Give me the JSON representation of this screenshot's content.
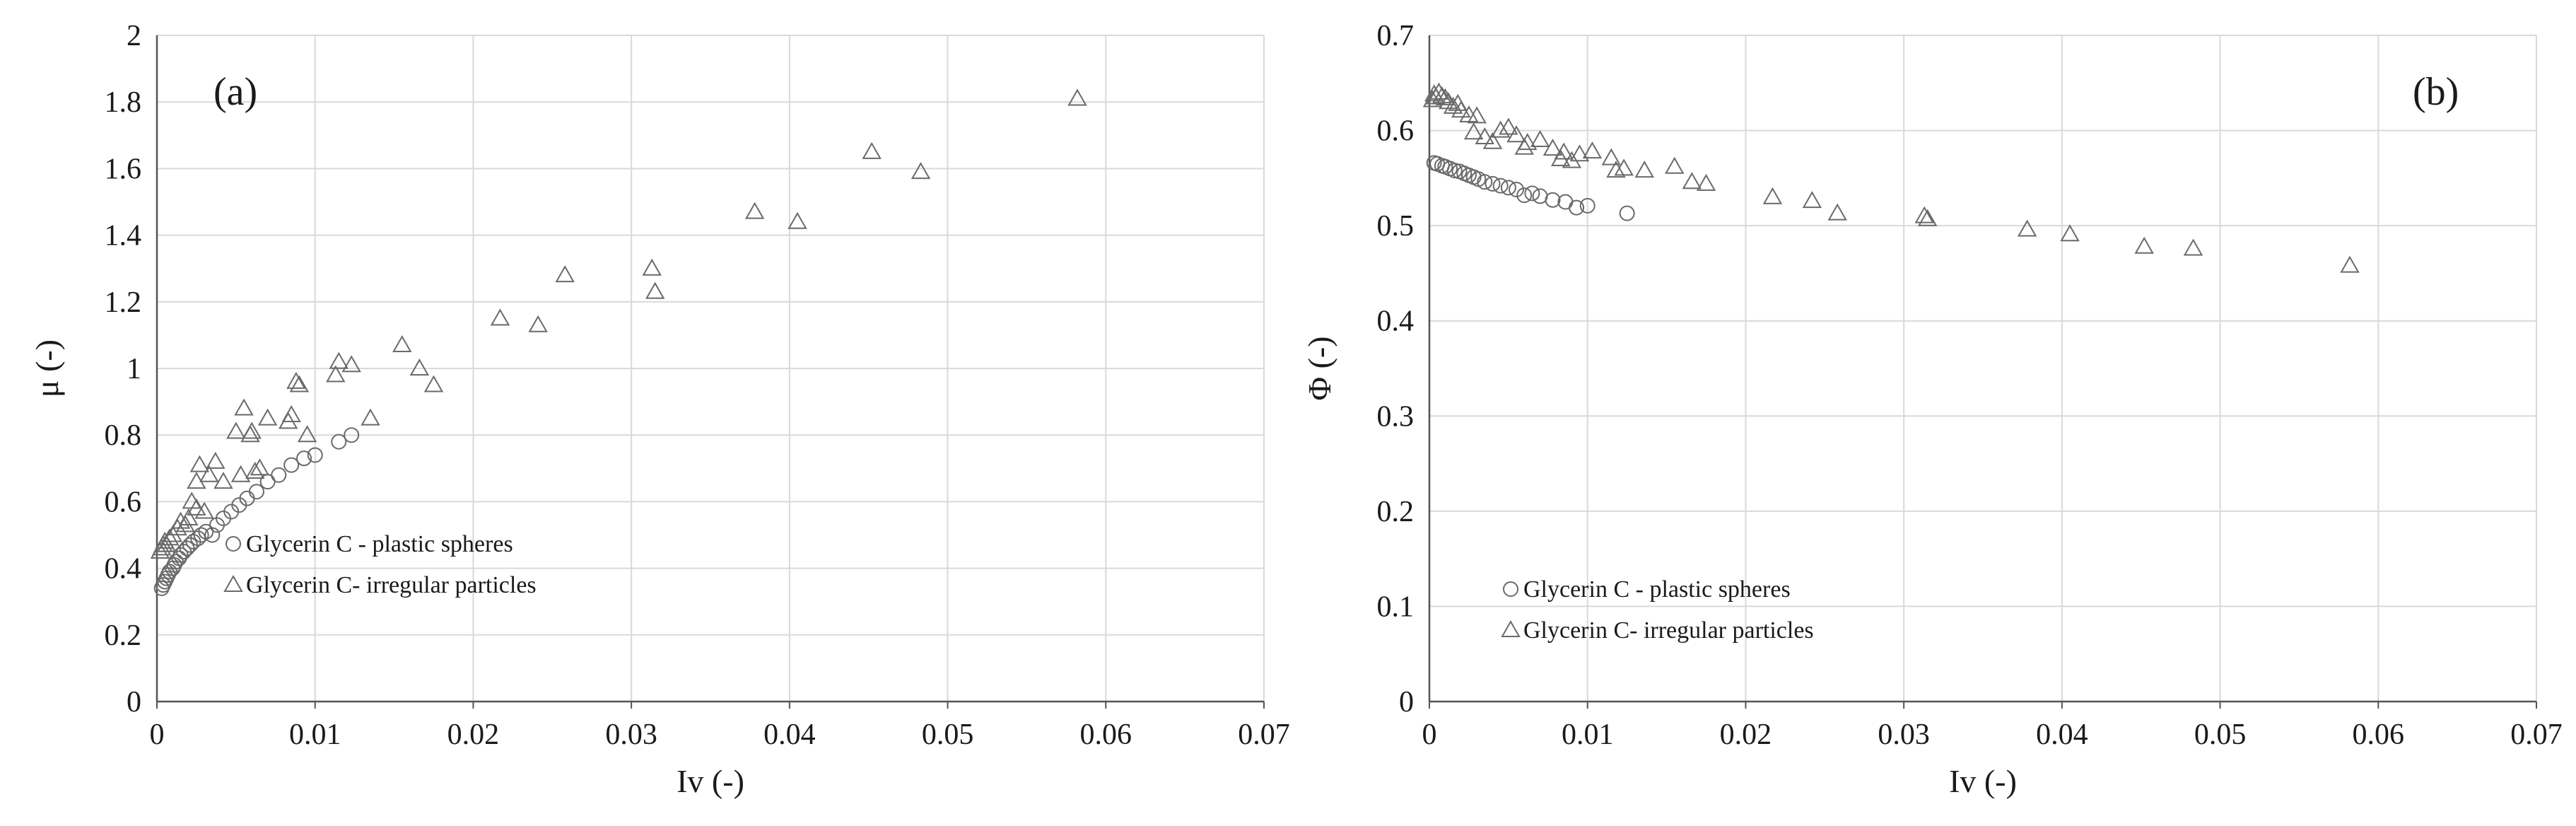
{
  "colors": {
    "marker": "#6a6a6a",
    "grid": "#d9d9d9",
    "axis": "#555555",
    "text": "#1a1a1a"
  },
  "chart_data": [
    {
      "type": "scatter",
      "panel_label": "(a)",
      "xlabel": "Iv (-)",
      "ylabel": "μ (-)",
      "xlim": [
        0,
        0.07
      ],
      "ylim": [
        0,
        2
      ],
      "x_ticks": [
        "0",
        "0.01",
        "0.02",
        "0.03",
        "0.04",
        "0.05",
        "0.06",
        "0.07"
      ],
      "y_ticks": [
        "0",
        "0.2",
        "0.4",
        "0.6",
        "0.8",
        "1",
        "1.2",
        "1.4",
        "1.6",
        "1.8",
        "2"
      ],
      "grid": true,
      "legend_position": "bottom-left",
      "series": [
        {
          "name": "Glycerin C - plastic spheres",
          "marker": "circle",
          "points": [
            [
              0.0003,
              0.34
            ],
            [
              0.0004,
              0.35
            ],
            [
              0.0005,
              0.36
            ],
            [
              0.0006,
              0.37
            ],
            [
              0.0007,
              0.38
            ],
            [
              0.0008,
              0.39
            ],
            [
              0.001,
              0.4
            ],
            [
              0.0011,
              0.41
            ],
            [
              0.0012,
              0.42
            ],
            [
              0.0014,
              0.43
            ],
            [
              0.0015,
              0.44
            ],
            [
              0.0017,
              0.45
            ],
            [
              0.0019,
              0.46
            ],
            [
              0.0021,
              0.47
            ],
            [
              0.0023,
              0.48
            ],
            [
              0.0026,
              0.49
            ],
            [
              0.0028,
              0.5
            ],
            [
              0.0031,
              0.51
            ],
            [
              0.0035,
              0.5
            ],
            [
              0.0038,
              0.53
            ],
            [
              0.0042,
              0.55
            ],
            [
              0.0047,
              0.57
            ],
            [
              0.0052,
              0.59
            ],
            [
              0.0057,
              0.61
            ],
            [
              0.0063,
              0.63
            ],
            [
              0.007,
              0.66
            ],
            [
              0.0077,
              0.68
            ],
            [
              0.0085,
              0.71
            ],
            [
              0.0093,
              0.73
            ],
            [
              0.01,
              0.74
            ],
            [
              0.0115,
              0.78
            ],
            [
              0.0123,
              0.8
            ]
          ]
        },
        {
          "name": "Glycerin C- irregular particles",
          "marker": "triangle",
          "points": [
            [
              0.0002,
              0.45
            ],
            [
              0.0003,
              0.46
            ],
            [
              0.0004,
              0.47
            ],
            [
              0.0005,
              0.48
            ],
            [
              0.0006,
              0.47
            ],
            [
              0.0008,
              0.49
            ],
            [
              0.001,
              0.5
            ],
            [
              0.0013,
              0.52
            ],
            [
              0.0015,
              0.54
            ],
            [
              0.0018,
              0.53
            ],
            [
              0.002,
              0.55
            ],
            [
              0.0022,
              0.6
            ],
            [
              0.0025,
              0.58
            ],
            [
              0.0025,
              0.66
            ],
            [
              0.0027,
              0.71
            ],
            [
              0.003,
              0.57
            ],
            [
              0.0033,
              0.68
            ],
            [
              0.0037,
              0.72
            ],
            [
              0.0042,
              0.66
            ],
            [
              0.005,
              0.81
            ],
            [
              0.0053,
              0.68
            ],
            [
              0.0055,
              0.88
            ],
            [
              0.0059,
              0.8
            ],
            [
              0.006,
              0.81
            ],
            [
              0.0062,
              0.69
            ],
            [
              0.0065,
              0.7
            ],
            [
              0.007,
              0.85
            ],
            [
              0.0083,
              0.84
            ],
            [
              0.0085,
              0.86
            ],
            [
              0.0088,
              0.96
            ],
            [
              0.009,
              0.95
            ],
            [
              0.0095,
              0.8
            ],
            [
              0.0113,
              0.98
            ],
            [
              0.0115,
              1.02
            ],
            [
              0.0123,
              1.01
            ],
            [
              0.0135,
              0.85
            ],
            [
              0.0155,
              1.07
            ],
            [
              0.0166,
              1.0
            ],
            [
              0.0175,
              0.95
            ],
            [
              0.0217,
              1.15
            ],
            [
              0.0241,
              1.13
            ],
            [
              0.0258,
              1.28
            ],
            [
              0.0313,
              1.3
            ],
            [
              0.0315,
              1.23
            ],
            [
              0.0378,
              1.47
            ],
            [
              0.0405,
              1.44
            ],
            [
              0.0452,
              1.65
            ],
            [
              0.0483,
              1.59
            ],
            [
              0.0582,
              1.81
            ]
          ]
        }
      ]
    },
    {
      "type": "scatter",
      "panel_label": "(b)",
      "xlabel": "Iv (-)",
      "ylabel": "Φ (-)",
      "xlim": [
        0,
        0.07
      ],
      "ylim": [
        0,
        0.7
      ],
      "x_ticks": [
        "0",
        "0.01",
        "0.02",
        "0.03",
        "0.04",
        "0.05",
        "0.06",
        "0.07"
      ],
      "y_ticks": [
        "0",
        "0.1",
        "0.2",
        "0.3",
        "0.4",
        "0.5",
        "0.6",
        "0.7"
      ],
      "grid": true,
      "legend_position": "bottom-left",
      "series": [
        {
          "name": "Glycerin C - plastic spheres",
          "marker": "circle",
          "points": [
            [
              0.0003,
              0.566
            ],
            [
              0.0005,
              0.565
            ],
            [
              0.0008,
              0.563
            ],
            [
              0.001,
              0.562
            ],
            [
              0.0013,
              0.56
            ],
            [
              0.0016,
              0.558
            ],
            [
              0.0019,
              0.557
            ],
            [
              0.0022,
              0.555
            ],
            [
              0.0025,
              0.553
            ],
            [
              0.0028,
              0.551
            ],
            [
              0.0031,
              0.549
            ],
            [
              0.0035,
              0.546
            ],
            [
              0.004,
              0.544
            ],
            [
              0.0045,
              0.542
            ],
            [
              0.005,
              0.54
            ],
            [
              0.0055,
              0.538
            ],
            [
              0.006,
              0.532
            ],
            [
              0.0065,
              0.534
            ],
            [
              0.007,
              0.531
            ],
            [
              0.0078,
              0.527
            ],
            [
              0.0086,
              0.525
            ],
            [
              0.0093,
              0.519
            ],
            [
              0.01,
              0.521
            ],
            [
              0.0125,
              0.513
            ]
          ]
        },
        {
          "name": "Glycerin C- irregular particles",
          "marker": "triangle",
          "points": [
            [
              0.0002,
              0.632
            ],
            [
              0.0003,
              0.638
            ],
            [
              0.0004,
              0.635
            ],
            [
              0.0006,
              0.64
            ],
            [
              0.0008,
              0.636
            ],
            [
              0.001,
              0.634
            ],
            [
              0.0012,
              0.63
            ],
            [
              0.0015,
              0.625
            ],
            [
              0.0018,
              0.628
            ],
            [
              0.002,
              0.621
            ],
            [
              0.0025,
              0.616
            ],
            [
              0.0028,
              0.598
            ],
            [
              0.003,
              0.615
            ],
            [
              0.0035,
              0.593
            ],
            [
              0.004,
              0.588
            ],
            [
              0.0045,
              0.6
            ],
            [
              0.005,
              0.603
            ],
            [
              0.0055,
              0.595
            ],
            [
              0.006,
              0.582
            ],
            [
              0.0062,
              0.587
            ],
            [
              0.007,
              0.59
            ],
            [
              0.0078,
              0.581
            ],
            [
              0.0083,
              0.57
            ],
            [
              0.0085,
              0.577
            ],
            [
              0.009,
              0.568
            ],
            [
              0.0095,
              0.575
            ],
            [
              0.0103,
              0.578
            ],
            [
              0.0115,
              0.571
            ],
            [
              0.0118,
              0.558
            ],
            [
              0.0123,
              0.56
            ],
            [
              0.0136,
              0.558
            ],
            [
              0.0155,
              0.562
            ],
            [
              0.0166,
              0.546
            ],
            [
              0.0175,
              0.544
            ],
            [
              0.0217,
              0.53
            ],
            [
              0.0242,
              0.526
            ],
            [
              0.0258,
              0.513
            ],
            [
              0.0313,
              0.51
            ],
            [
              0.0315,
              0.507
            ],
            [
              0.0378,
              0.496
            ],
            [
              0.0405,
              0.491
            ],
            [
              0.0452,
              0.478
            ],
            [
              0.0483,
              0.476
            ],
            [
              0.0582,
              0.458
            ]
          ]
        }
      ]
    }
  ]
}
